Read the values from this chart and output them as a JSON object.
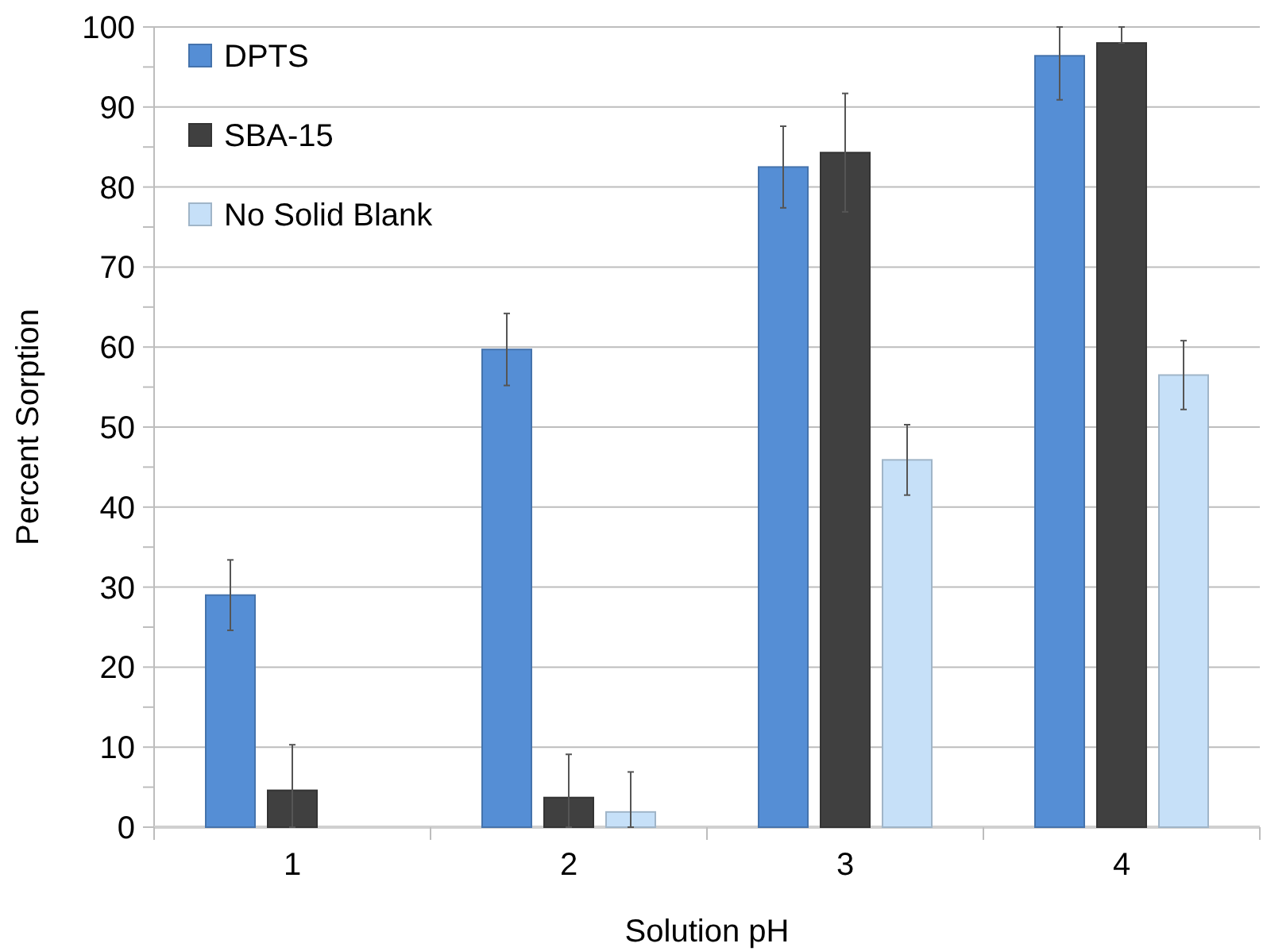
{
  "chart_data": {
    "type": "bar",
    "xlabel": "Solution pH",
    "ylabel": "Percent Sorption",
    "categories": [
      "1",
      "2",
      "3",
      "4"
    ],
    "series": [
      {
        "name": "DPTS",
        "color": "#558ed5",
        "values": [
          29.0,
          59.7,
          82.5,
          96.4
        ],
        "errors": [
          4.4,
          4.5,
          5.1,
          [
            90.9,
            100
          ]
        ]
      },
      {
        "name": "SBA-15",
        "color": "#404040",
        "values": [
          4.6,
          3.7,
          84.3,
          98.0
        ],
        "errors": [
          [
            0,
            10.3
          ],
          [
            0,
            9.1
          ],
          7.4,
          [
            98.0,
            100
          ]
        ]
      },
      {
        "name": "No Solid Blank",
        "color": "#c6e0f8",
        "values": [
          null,
          1.9,
          45.9,
          56.5
        ],
        "errors": [
          null,
          [
            0,
            6.9
          ],
          4.4,
          4.3
        ]
      }
    ],
    "ylim": [
      0,
      100
    ],
    "yticks": [
      0,
      {
        "value": 5,
        "label": null
      },
      10,
      {
        "value": 15,
        "label": null
      },
      20,
      {
        "value": 25,
        "label": null
      },
      30,
      {
        "value": 35,
        "label": null
      },
      40,
      {
        "value": 45,
        "label": null
      },
      50,
      {
        "value": 55,
        "label": null
      },
      60,
      {
        "value": 65,
        "label": null
      },
      70,
      {
        "value": 75,
        "label": null
      },
      80,
      {
        "value": 85,
        "label": null
      },
      90,
      {
        "value": 95,
        "label": null
      },
      100
    ],
    "grid": "y",
    "legend": "top left"
  }
}
